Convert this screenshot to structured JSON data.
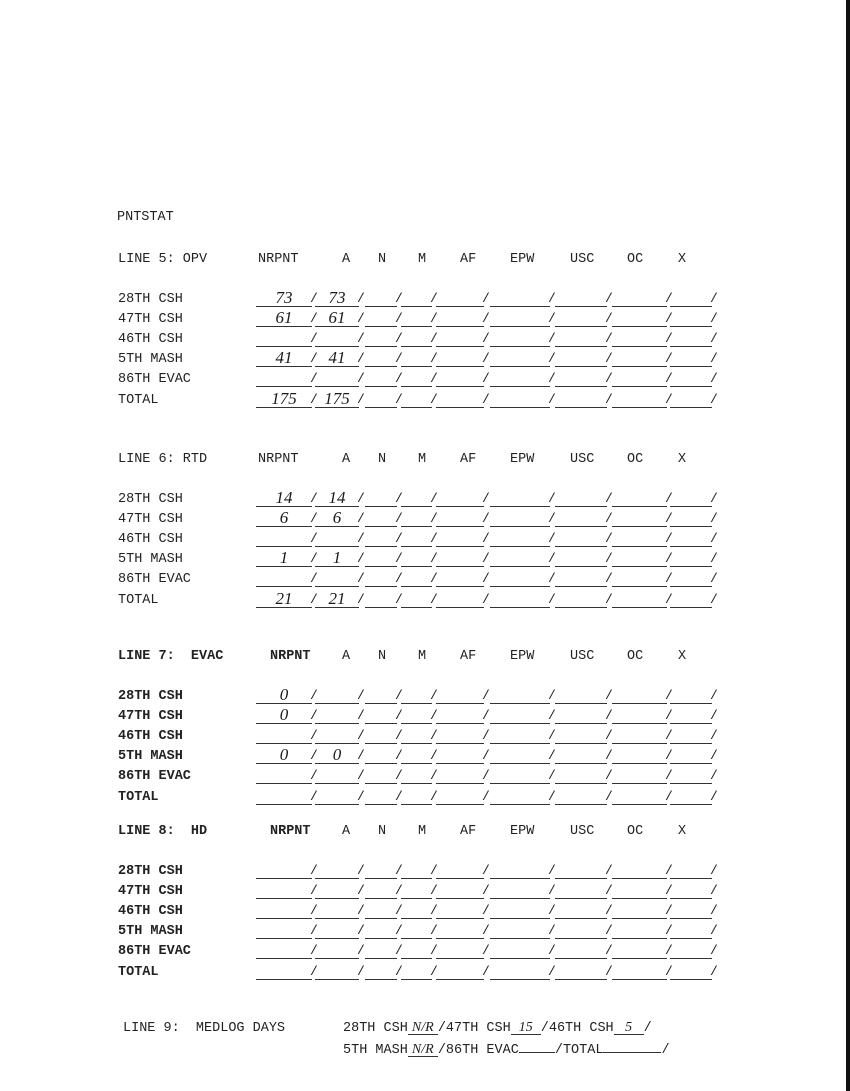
{
  "title": "PNTSTAT",
  "columns": [
    "NRPNT",
    "A",
    "N",
    "M",
    "AF",
    "EPW",
    "USC",
    "OC",
    "X"
  ],
  "sections": [
    {
      "label": "LINE 5: OPV",
      "rows": [
        {
          "label": "28TH CSH",
          "values": [
            "73",
            "73",
            "",
            "",
            "",
            "",
            "",
            "",
            ""
          ]
        },
        {
          "label": "47TH CSH",
          "values": [
            "61",
            "61",
            "",
            "",
            "",
            "",
            "",
            "",
            ""
          ]
        },
        {
          "label": "46TH CSH",
          "values": [
            "",
            "",
            "",
            "",
            "",
            "",
            "",
            "",
            ""
          ]
        },
        {
          "label": "5TH MASH",
          "values": [
            "41",
            "41",
            "",
            "",
            "",
            "",
            "",
            "",
            ""
          ]
        },
        {
          "label": "86TH EVAC",
          "values": [
            "",
            "",
            "",
            "",
            "",
            "",
            "",
            "",
            ""
          ]
        },
        {
          "label": "TOTAL",
          "values": [
            "175",
            "175",
            "",
            "",
            "",
            "",
            "",
            "",
            ""
          ]
        }
      ]
    },
    {
      "label": "LINE 6: RTD",
      "rows": [
        {
          "label": "28TH CSH",
          "values": [
            "14",
            "14",
            "",
            "",
            "",
            "",
            "",
            "",
            ""
          ]
        },
        {
          "label": "47TH CSH",
          "values": [
            "6",
            "6",
            "",
            "",
            "",
            "",
            "",
            "",
            ""
          ]
        },
        {
          "label": "46TH CSH",
          "values": [
            "",
            "",
            "",
            "",
            "",
            "",
            "",
            "",
            ""
          ]
        },
        {
          "label": "5TH MASH",
          "values": [
            "1",
            "1",
            "",
            "",
            "",
            "",
            "",
            "",
            ""
          ]
        },
        {
          "label": "86TH EVAC",
          "values": [
            "",
            "",
            "",
            "",
            "",
            "",
            "",
            "",
            ""
          ]
        },
        {
          "label": "TOTAL",
          "values": [
            "21",
            "21",
            "",
            "",
            "",
            "",
            "",
            "",
            ""
          ]
        }
      ]
    },
    {
      "label": "LINE 7:  EVAC",
      "rows": [
        {
          "label": "28TH CSH",
          "values": [
            "0",
            "",
            "",
            "",
            "",
            "",
            "",
            "",
            ""
          ]
        },
        {
          "label": "47TH CSH",
          "values": [
            "0",
            "",
            "",
            "",
            "",
            "",
            "",
            "",
            ""
          ]
        },
        {
          "label": "46TH CSH",
          "values": [
            "",
            "",
            "",
            "",
            "",
            "",
            "",
            "",
            ""
          ]
        },
        {
          "label": "5TH MASH",
          "values": [
            "0",
            "0",
            "",
            "",
            "",
            "",
            "",
            "",
            ""
          ]
        },
        {
          "label": "86TH EVAC",
          "values": [
            "",
            "",
            "",
            "",
            "",
            "",
            "",
            "",
            ""
          ]
        },
        {
          "label": "TOTAL",
          "values": [
            "",
            "",
            "",
            "",
            "",
            "",
            "",
            "",
            ""
          ]
        }
      ]
    },
    {
      "label": "LINE 8:  HD",
      "rows": [
        {
          "label": "28TH CSH",
          "values": [
            "",
            "",
            "",
            "",
            "",
            "",
            "",
            "",
            ""
          ]
        },
        {
          "label": "47TH CSH",
          "values": [
            "",
            "",
            "",
            "",
            "",
            "",
            "",
            "",
            ""
          ]
        },
        {
          "label": "46TH CSH",
          "values": [
            "",
            "",
            "",
            "",
            "",
            "",
            "",
            "",
            ""
          ]
        },
        {
          "label": "5TH MASH",
          "values": [
            "",
            "",
            "",
            "",
            "",
            "",
            "",
            "",
            ""
          ]
        },
        {
          "label": "86TH EVAC",
          "values": [
            "",
            "",
            "",
            "",
            "",
            "",
            "",
            "",
            ""
          ]
        },
        {
          "label": "TOTAL",
          "values": [
            "",
            "",
            "",
            "",
            "",
            "",
            "",
            "",
            ""
          ]
        }
      ]
    }
  ],
  "line9": {
    "label": "LINE 9:  MEDLOG DAYS",
    "items": [
      {
        "label": "28TH CSH",
        "value": "N/R"
      },
      {
        "label": "47TH CSH",
        "value": "15"
      },
      {
        "label": "46TH CSH",
        "value": "5"
      },
      {
        "label": "5TH MASH",
        "value": "N/R"
      },
      {
        "label": "86TH EVAC",
        "value": ""
      },
      {
        "label": "TOTAL",
        "value": ""
      }
    ]
  }
}
